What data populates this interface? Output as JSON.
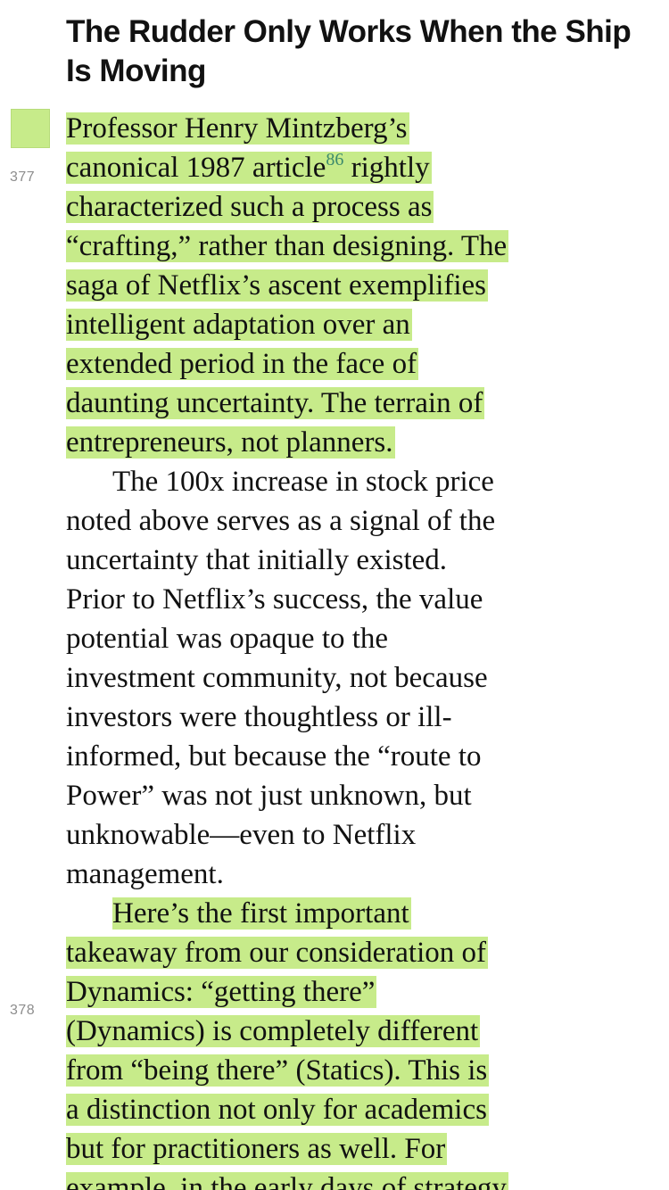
{
  "heading": "The Rudder Only Works When the Ship Is Moving",
  "page_numbers": [
    "377",
    "378"
  ],
  "footnote": "86",
  "para1": {
    "l1": "Professor Henry Mintzberg’s",
    "l2a": "canonical 1987 article",
    "l2b": " rightly",
    "l3": "characterized such a process as",
    "l4": "“crafting,” rather than designing. The",
    "l5": "saga of Netflix’s ascent exemplifies",
    "l6": "intelligent adaptation over an",
    "l7": "extended period in the face of",
    "l8": "daunting uncertainty. The terrain of",
    "l9": "entrepreneurs, not planners."
  },
  "para2": {
    "l1": "The 100x increase in stock price",
    "l2": "noted above serves as a signal of the",
    "l3": "uncertainty that initially existed.",
    "l4": "Prior to Netflix’s success, the value",
    "l5": "potential was opaque to the",
    "l6": "investment community, not because",
    "l7": "investors were thoughtless or ill-",
    "l8": "informed, but because the “route to",
    "l9": "Power” was not just unknown, but",
    "l10": "unknowable—even to Netflix",
    "l11": "management."
  },
  "para3": {
    "l1": "Here’s the first important",
    "l2": "takeaway from our consideration of",
    "l3": "Dynamics: “getting there”",
    "l4": "(Dynamics) is completely different",
    "l5": "from “being there” (Statics). This is",
    "l6": "a distinction not only for academics",
    "l7": "but for practitioners as well. For",
    "l8": "example, in the early days of strategy"
  },
  "colors": {
    "highlight": "#c7eb8a",
    "footnote": "#3c8a6c",
    "page_number": "#8d8d8d",
    "text": "#111111"
  }
}
